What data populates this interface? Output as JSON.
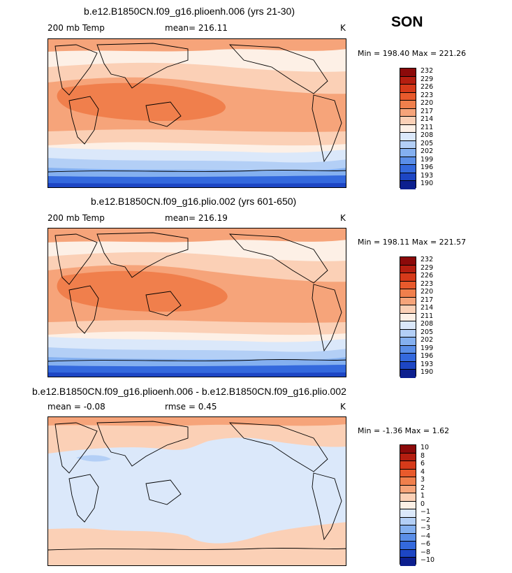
{
  "season": "SON",
  "chart_data": [
    {
      "type": "heatmap",
      "title": "b.e12.B1850CN.f09_g16.plioenh.006 (yrs 21-30)",
      "variable": "200 mb Temp",
      "mean_label": "mean= 216.11",
      "units": "K",
      "stats_label": "Min = 198.40 Max = 221.26",
      "min": 198.4,
      "max": 221.26,
      "mean": 216.11,
      "colorbar_levels": [
        "232",
        "229",
        "226",
        "223",
        "220",
        "217",
        "214",
        "211",
        "208",
        "205",
        "202",
        "199",
        "196",
        "193",
        "190"
      ],
      "colors": [
        "#8c0a0a",
        "#b51e10",
        "#d63a1a",
        "#e85a2c",
        "#f07f4c",
        "#f6a47a",
        "#fbd0b6",
        "#fdf0e6",
        "#dbe8fa",
        "#b3cff6",
        "#84b0f0",
        "#5a8ee8",
        "#3469dd",
        "#1d46c4",
        "#0c1f8f"
      ]
    },
    {
      "type": "heatmap",
      "title": "b.e12.B1850CN.f09_g16.plio.002 (yrs 601-650)",
      "variable": "200 mb Temp",
      "mean_label": "mean= 216.19",
      "units": "K",
      "stats_label": "Min = 198.11 Max = 221.57",
      "min": 198.11,
      "max": 221.57,
      "mean": 216.19,
      "colorbar_levels": [
        "232",
        "229",
        "226",
        "223",
        "220",
        "217",
        "214",
        "211",
        "208",
        "205",
        "202",
        "199",
        "196",
        "193",
        "190"
      ],
      "colors": [
        "#8c0a0a",
        "#b51e10",
        "#d63a1a",
        "#e85a2c",
        "#f07f4c",
        "#f6a47a",
        "#fbd0b6",
        "#fdf0e6",
        "#dbe8fa",
        "#b3cff6",
        "#84b0f0",
        "#5a8ee8",
        "#3469dd",
        "#1d46c4",
        "#0c1f8f"
      ]
    },
    {
      "type": "heatmap",
      "title": "b.e12.B1850CN.f09_g16.plioenh.006 - b.e12.B1850CN.f09_g16.plio.002",
      "mean_label": "mean =   -0.08",
      "rmse_label": "rmse =    0.45",
      "units": "K",
      "stats_label": "Min =   -1.36 Max =    1.62",
      "min": -1.36,
      "max": 1.62,
      "mean": -0.08,
      "rmse": 0.45,
      "colorbar_levels": [
        "10",
        "8",
        "6",
        "4",
        "3",
        "2",
        "1",
        "0",
        "−1",
        "−2",
        "−3",
        "−4",
        "−6",
        "−8",
        "−10"
      ],
      "colors": [
        "#8c0a0a",
        "#b51e10",
        "#d63a1a",
        "#e85a2c",
        "#f07f4c",
        "#f6a47a",
        "#fbd0b6",
        "#fdf0e6",
        "#dbe8fa",
        "#b3cff6",
        "#84b0f0",
        "#5a8ee8",
        "#3469dd",
        "#1d46c4",
        "#0c1f8f"
      ]
    }
  ]
}
